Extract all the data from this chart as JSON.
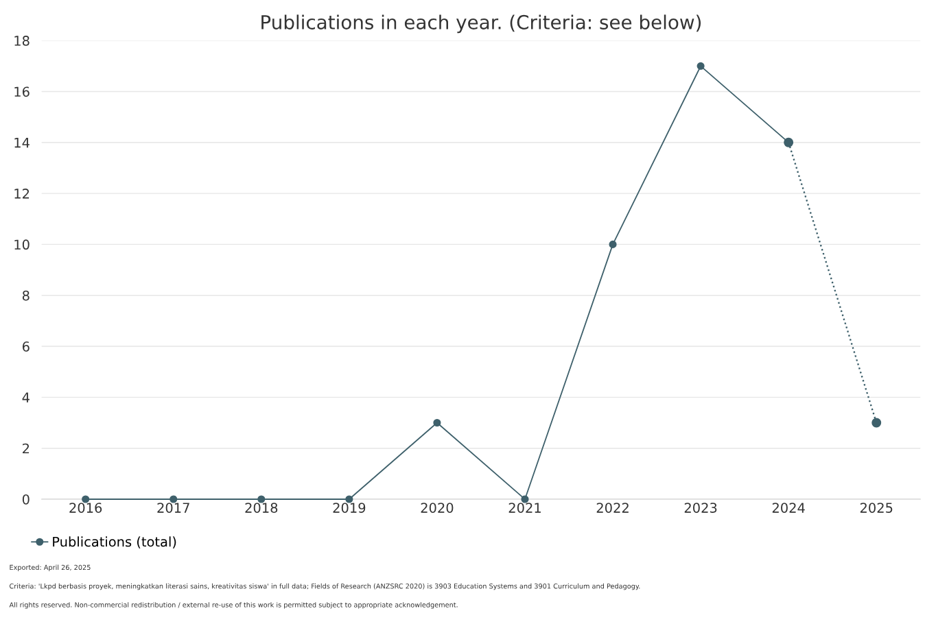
{
  "chart_data": {
    "type": "line",
    "title": "Publications in each year. (Criteria: see below)",
    "categories": [
      "2016",
      "2017",
      "2018",
      "2019",
      "2020",
      "2021",
      "2022",
      "2023",
      "2024",
      "2025"
    ],
    "series": [
      {
        "name": "Publications (total)",
        "color": "#3e606b",
        "values": [
          0,
          0,
          0,
          0,
          3,
          0,
          10,
          17,
          14,
          null
        ]
      },
      {
        "color": "#3e606b",
        "line_style": "dotted",
        "values": [
          null,
          null,
          null,
          null,
          null,
          null,
          null,
          null,
          14,
          3
        ]
      }
    ],
    "ylim": [
      0,
      18
    ],
    "yticks": [
      0,
      2,
      4,
      6,
      8,
      10,
      12,
      14,
      16,
      18
    ],
    "grid": "y",
    "legend": "bottom left",
    "marker": "circle",
    "line_style": "solid",
    "annotations": [
      "Exported: April 26, 2025",
      "Criteria: 'Lkpd berbasis proyek, meningkatkan literasi sains, kreativitas siswa' in full data; Fields of Research (ANZSRC 2020) is 3903 Education Systems and 3901 Curriculum and Pedagogy.",
      "All rights reserved. Non-commercial redistribution / external re-use of this work is permitted subject to appropriate acknowledgement."
    ]
  }
}
